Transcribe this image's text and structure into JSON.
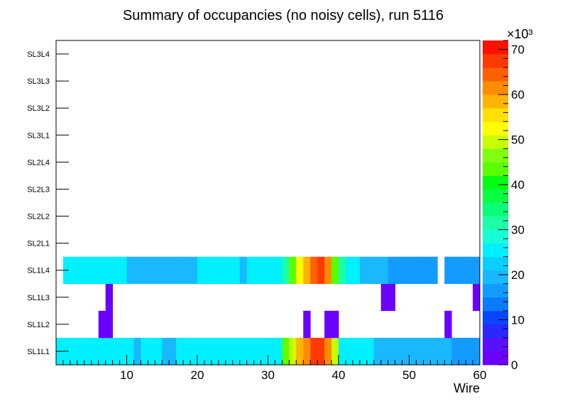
{
  "chart_data": {
    "type": "heatmap",
    "title": "Summary of occupancies (no noisy cells), run 5116",
    "xlabel": "Wire",
    "ylabel": "",
    "xlim": [
      0,
      60
    ],
    "x_ticks": [
      "10",
      "20",
      "30",
      "40",
      "50",
      "60"
    ],
    "x_tick_values": [
      10,
      20,
      30,
      40,
      50,
      60
    ],
    "y_categories": [
      "SL1L1",
      "SL1L2",
      "SL1L3",
      "SL1L4",
      "SL2L1",
      "SL2L2",
      "SL2L3",
      "SL2L4",
      "SL3L1",
      "SL3L2",
      "SL3L3",
      "SL3L4"
    ],
    "z_range": [
      0,
      72000
    ],
    "z_multiplier_label": "×10³",
    "z_ticks": [
      "0",
      "10",
      "20",
      "30",
      "40",
      "50",
      "60",
      "70"
    ],
    "z_tick_values": [
      0,
      10000,
      20000,
      30000,
      40000,
      50000,
      60000,
      70000
    ],
    "palette": [
      "#6a00ff",
      "#5a10ff",
      "#2828ff",
      "#0a46ff",
      "#0a7aff",
      "#129cff",
      "#1ab8ff",
      "#0ad0ff",
      "#00f0ff",
      "#18ffd8",
      "#1affa8",
      "#08ff78",
      "#0aff40",
      "#00ff14",
      "#5aff00",
      "#80ff10",
      "#c8ff00",
      "#ffff00",
      "#ffe000",
      "#ffb400",
      "#ff8c00",
      "#ff6000",
      "#ff3a00",
      "#ff1000"
    ],
    "rows": {
      "SL1L1": [
        26000,
        26000,
        26000,
        26000,
        26000,
        26000,
        26000,
        26000,
        24000,
        24000,
        24000,
        20000,
        24000,
        24000,
        24000,
        20000,
        20000,
        24000,
        24000,
        24000,
        24000,
        24000,
        24000,
        26000,
        26000,
        24000,
        24000,
        24000,
        26000,
        26000,
        26000,
        26000,
        42000,
        48000,
        58000,
        62000,
        68000,
        66000,
        60000,
        50000,
        24000,
        24000,
        24000,
        24000,
        24000,
        20000,
        20000,
        20000,
        20000,
        20000,
        20000,
        20000,
        20000,
        20000,
        20000,
        20000,
        15000,
        15000,
        15000,
        15000
      ],
      "SL1L2": [
        null,
        null,
        null,
        null,
        null,
        null,
        1000,
        1000,
        null,
        null,
        null,
        null,
        null,
        null,
        null,
        null,
        null,
        null,
        null,
        null,
        null,
        null,
        null,
        null,
        null,
        null,
        null,
        null,
        null,
        null,
        null,
        null,
        null,
        null,
        null,
        1000,
        null,
        null,
        1000,
        1000,
        null,
        null,
        null,
        null,
        null,
        null,
        null,
        null,
        null,
        null,
        null,
        null,
        null,
        null,
        null,
        1000,
        null,
        null,
        null,
        null
      ],
      "SL1L3": [
        null,
        null,
        null,
        null,
        null,
        null,
        null,
        1000,
        null,
        null,
        null,
        null,
        null,
        null,
        null,
        null,
        null,
        null,
        null,
        null,
        null,
        null,
        null,
        null,
        null,
        null,
        null,
        null,
        null,
        null,
        null,
        null,
        null,
        null,
        null,
        null,
        null,
        null,
        null,
        null,
        null,
        null,
        null,
        null,
        null,
        null,
        1000,
        1000,
        null,
        null,
        null,
        null,
        null,
        null,
        null,
        null,
        null,
        null,
        null,
        1000
      ],
      "SL1L4": [
        null,
        24000,
        24000,
        24000,
        24000,
        24000,
        24000,
        24000,
        24000,
        24000,
        20000,
        20000,
        20000,
        20000,
        20000,
        20000,
        20000,
        20000,
        20000,
        20000,
        24000,
        24000,
        24000,
        24000,
        24000,
        24000,
        20000,
        24000,
        24000,
        24000,
        24000,
        24000,
        32000,
        44000,
        52000,
        58000,
        64000,
        68000,
        62000,
        44000,
        32000,
        24000,
        24000,
        20000,
        20000,
        20000,
        20000,
        15000,
        15000,
        15000,
        15000,
        15000,
        15000,
        15000,
        null,
        15000,
        15000,
        15000,
        15000,
        15000
      ],
      "SL2L1": [],
      "SL2L2": [],
      "SL2L3": [],
      "SL2L4": [],
      "SL3L1": [],
      "SL3L2": [],
      "SL3L3": [],
      "SL3L4": []
    }
  }
}
